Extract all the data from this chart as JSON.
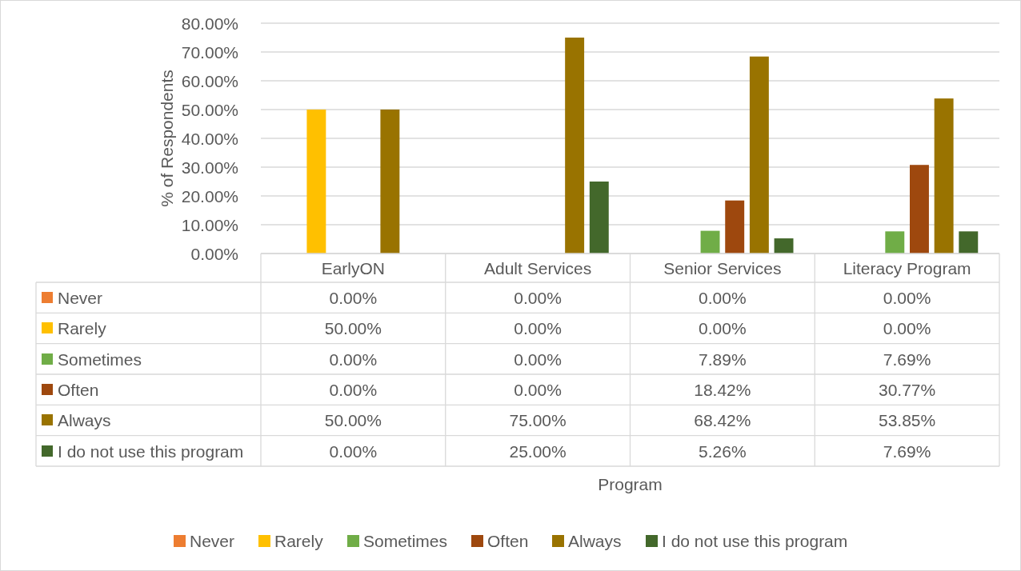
{
  "chart_data": {
    "type": "bar",
    "ylabel": "% of Respondents",
    "annotations": [
      "Program"
    ],
    "categories": [
      "EarlyON",
      "Adult Services",
      "Senior Services",
      "Literacy Program"
    ],
    "series": [
      {
        "name": "Never",
        "color": "#ed7d31",
        "values": [
          0,
          0,
          0,
          0
        ],
        "value_labels": [
          "0.00%",
          "0.00%",
          "0.00%",
          "0.00%"
        ]
      },
      {
        "name": "Rarely",
        "color": "#ffc000",
        "values": [
          50,
          0,
          0,
          0
        ],
        "value_labels": [
          "50.00%",
          "0.00%",
          "0.00%",
          "0.00%"
        ]
      },
      {
        "name": "Sometimes",
        "color": "#70ad47",
        "values": [
          0,
          0,
          7.89,
          7.69
        ],
        "value_labels": [
          "0.00%",
          "0.00%",
          "7.89%",
          "7.69%"
        ]
      },
      {
        "name": "Often",
        "color": "#9e480e",
        "values": [
          0,
          0,
          18.42,
          30.77
        ],
        "value_labels": [
          "0.00%",
          "0.00%",
          "18.42%",
          "30.77%"
        ]
      },
      {
        "name": "Always",
        "color": "#997300",
        "values": [
          50,
          75,
          68.42,
          53.85
        ],
        "value_labels": [
          "50.00%",
          "75.00%",
          "68.42%",
          "53.85%"
        ]
      },
      {
        "name": "I do not use this program",
        "color": "#43682b",
        "values": [
          0,
          25,
          5.26,
          7.69
        ],
        "value_labels": [
          "0.00%",
          "25.00%",
          "5.26%",
          "7.69%"
        ]
      }
    ],
    "ylim": [
      0,
      80
    ],
    "yticks": [
      {
        "value": 0,
        "label": "0.00%"
      },
      {
        "value": 10,
        "label": "10.00%"
      },
      {
        "value": 20,
        "label": "20.00%"
      },
      {
        "value": 30,
        "label": "30.00%"
      },
      {
        "value": 40,
        "label": "40.00%"
      },
      {
        "value": 50,
        "label": "50.00%"
      },
      {
        "value": 60,
        "label": "60.00%"
      },
      {
        "value": 70,
        "label": "70.00%"
      },
      {
        "value": 80,
        "label": "80.00%"
      }
    ],
    "grid": "y",
    "legend": "bottom"
  }
}
